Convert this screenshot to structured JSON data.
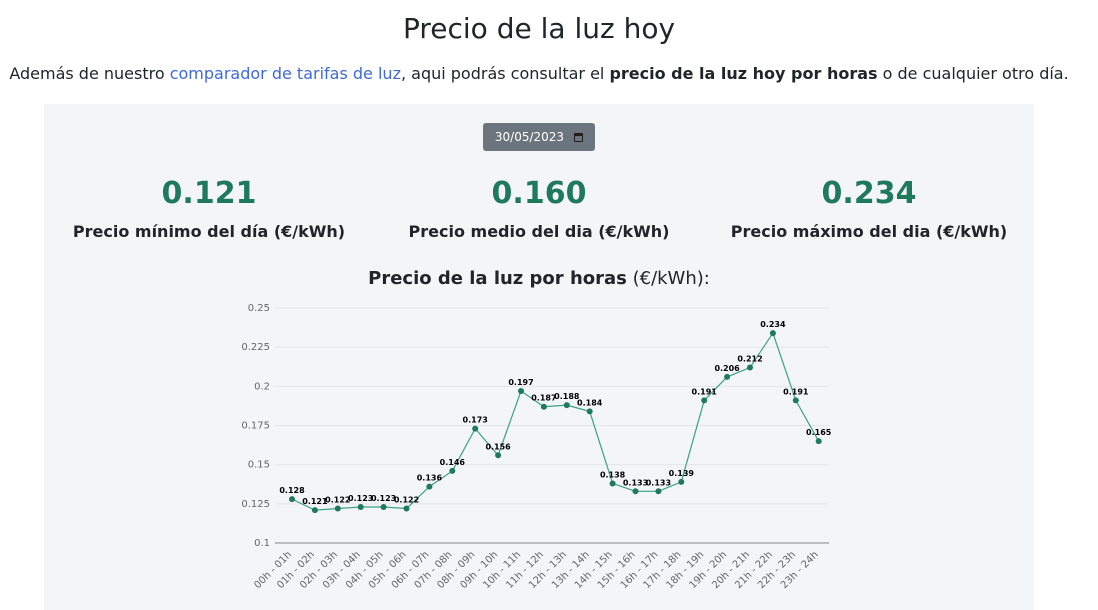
{
  "header": {
    "title": "Precio de la luz hoy",
    "intro_prefix": "Además de nuestro ",
    "intro_link": "comparador de tarifas de luz",
    "intro_middle": ", aqui podrás consultar el ",
    "intro_bold": "precio de la luz hoy por horas",
    "intro_suffix": " o de cualquier otro día."
  },
  "date_picker": {
    "value": "30/05/2023",
    "icon": "calendar-icon"
  },
  "stats": {
    "min": {
      "value": "0.121",
      "label": "Precio mínimo del día (€/kWh)"
    },
    "avg": {
      "value": "0.160",
      "label": "Precio medio del dia (€/kWh)"
    },
    "max": {
      "value": "0.234",
      "label": "Precio máximo del dia (€/kWh)"
    }
  },
  "colors": {
    "accent": "#1f7a5c",
    "line": "#3aa37f",
    "link": "#3f6ad8",
    "panel": "#f3f5f7"
  },
  "chart_data": {
    "type": "line",
    "title_bold": "Precio de la luz por horas",
    "title_unit": "(€/kWh):",
    "categories": [
      "00h - 01h",
      "01h - 02h",
      "02h - 03h",
      "03h - 04h",
      "04h - 05h",
      "05h - 06h",
      "06h - 07h",
      "07h - 08h",
      "08h - 09h",
      "09h - 10h",
      "10h - 11h",
      "11h - 12h",
      "12h - 13h",
      "13h - 14h",
      "14h - 15h",
      "15h - 16h",
      "16h - 17h",
      "17h - 18h",
      "18h - 19h",
      "19h - 20h",
      "20h - 21h",
      "21h - 22h",
      "22h - 23h",
      "23h - 24h"
    ],
    "values": [
      0.128,
      0.121,
      0.122,
      0.123,
      0.123,
      0.122,
      0.136,
      0.146,
      0.173,
      0.156,
      0.197,
      0.187,
      0.188,
      0.184,
      0.138,
      0.133,
      0.133,
      0.139,
      0.191,
      0.206,
      0.212,
      0.234,
      0.191,
      0.165
    ],
    "ylim": [
      0.1,
      0.25
    ],
    "yticks": [
      "0.1",
      "0.125",
      "0.15",
      "0.175",
      "0.2",
      "0.225",
      "0.25"
    ],
    "grid": true,
    "data_labels": true
  }
}
